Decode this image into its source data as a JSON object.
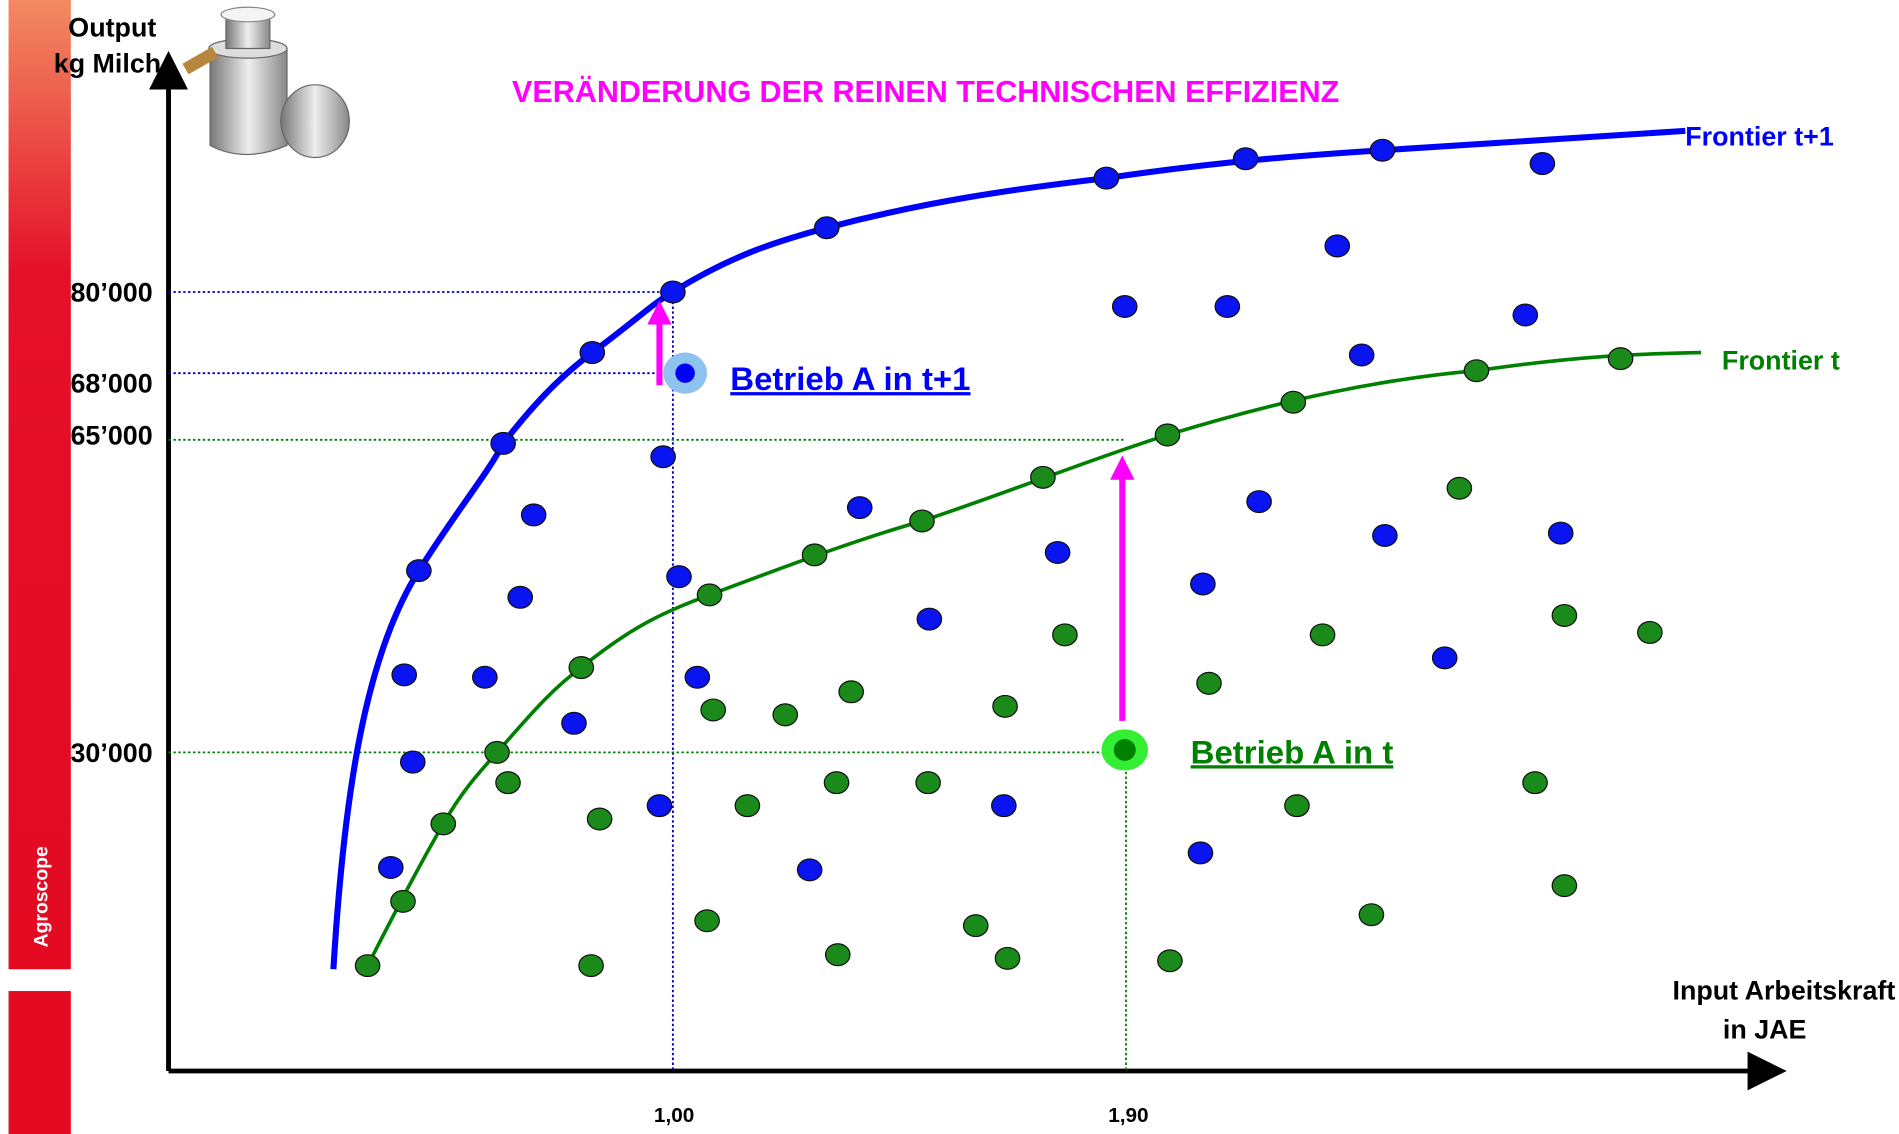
{
  "y_axis": {
    "label_line1": "Output",
    "label_line2": "kg Milch",
    "ticks": [
      "80’000",
      "68’000",
      "65’000",
      "30’000"
    ]
  },
  "x_axis": {
    "label_line1": "Input Arbeitskraft",
    "label_line2": "in JAE",
    "ticks": [
      "1,00",
      "1,90"
    ]
  },
  "title": "VERÄNDERUNG DER REINEN TECHNISCHEN EFFIZIENZ",
  "frontiers": [
    "Frontier t+1",
    "Frontier t"
  ],
  "points": [
    "Betrieb A in t+1",
    "Betrieb A in t"
  ],
  "brand": "Agroscope"
}
